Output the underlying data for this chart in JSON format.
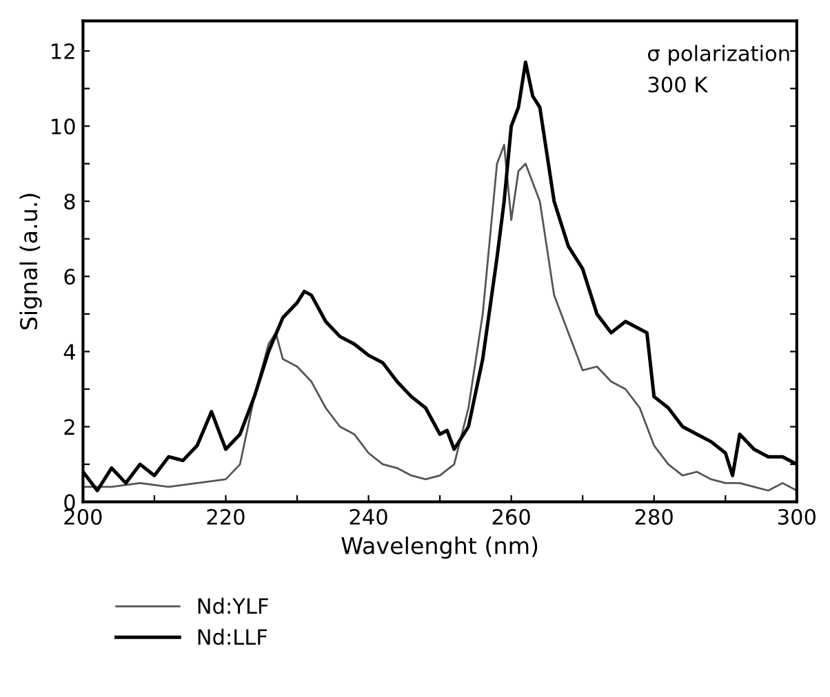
{
  "chart_data": {
    "type": "line",
    "xlabel": "Wavelenght (nm)",
    "ylabel": "Signal (a.u.)",
    "annotations": [
      "σ polarization",
      "300 K"
    ],
    "xlim": [
      200,
      300
    ],
    "ylim": [
      0,
      12.8
    ],
    "xticks": [
      200,
      {
        "value": 210,
        "label": null
      },
      220,
      {
        "value": 230,
        "label": null
      },
      240,
      {
        "value": 250,
        "label": null
      },
      260,
      {
        "value": 270,
        "label": null
      },
      280,
      {
        "value": 290,
        "label": null
      },
      300
    ],
    "yticks": [
      0,
      {
        "value": 1,
        "label": null
      },
      2,
      {
        "value": 3,
        "label": null
      },
      4,
      {
        "value": 5,
        "label": null
      },
      6,
      {
        "value": 7,
        "label": null
      },
      8,
      {
        "value": 9,
        "label": null
      },
      10,
      {
        "value": 11,
        "label": null
      },
      12
    ],
    "grid": false,
    "legend": "bottom left",
    "marker": "none",
    "line_style": "solid",
    "series": [
      {
        "name": "Nd:YLF",
        "color": "#555555",
        "x": [
          200,
          204,
          208,
          212,
          216,
          220,
          222,
          224,
          226,
          227,
          228,
          230,
          232,
          234,
          236,
          238,
          240,
          242,
          244,
          246,
          248,
          250,
          252,
          254,
          256,
          258,
          259,
          260,
          261,
          262,
          264,
          266,
          268,
          270,
          272,
          274,
          276,
          278,
          280,
          282,
          284,
          286,
          288,
          290,
          292,
          294,
          296,
          298,
          300
        ],
        "values": [
          0.4,
          0.4,
          0.5,
          0.4,
          0.5,
          0.6,
          1.0,
          2.8,
          4.2,
          4.5,
          3.8,
          3.6,
          3.2,
          2.5,
          2.0,
          1.8,
          1.3,
          1.0,
          0.9,
          0.7,
          0.6,
          0.7,
          1.0,
          2.5,
          5.0,
          9.0,
          9.5,
          7.5,
          8.8,
          9.0,
          8.0,
          5.5,
          4.5,
          3.5,
          3.6,
          3.2,
          3.0,
          2.5,
          1.5,
          1.0,
          0.7,
          0.8,
          0.6,
          0.5,
          0.5,
          0.4,
          0.3,
          0.5,
          0.3
        ]
      },
      {
        "name": "Nd:LLF",
        "color": "#000000",
        "x": [
          200,
          202,
          204,
          206,
          208,
          210,
          212,
          214,
          216,
          218,
          220,
          222,
          224,
          226,
          228,
          230,
          231,
          232,
          234,
          236,
          238,
          240,
          242,
          244,
          246,
          248,
          250,
          251,
          252,
          254,
          256,
          258,
          259,
          260,
          261,
          262,
          263,
          264,
          266,
          268,
          270,
          272,
          274,
          276,
          278,
          279,
          280,
          282,
          284,
          286,
          288,
          290,
          291,
          292,
          294,
          296,
          298,
          300
        ],
        "values": [
          0.8,
          0.3,
          0.9,
          0.5,
          1.0,
          0.7,
          1.2,
          1.1,
          1.5,
          2.4,
          1.4,
          1.8,
          2.8,
          4.0,
          4.9,
          5.3,
          5.6,
          5.5,
          4.8,
          4.4,
          4.2,
          3.9,
          3.7,
          3.2,
          2.8,
          2.5,
          1.8,
          1.9,
          1.4,
          2.0,
          3.8,
          6.5,
          8.0,
          10.0,
          10.5,
          11.7,
          10.8,
          10.5,
          8.0,
          6.8,
          6.2,
          5.0,
          4.5,
          4.8,
          4.6,
          4.5,
          2.8,
          2.5,
          2.0,
          1.8,
          1.6,
          1.3,
          0.7,
          1.8,
          1.4,
          1.2,
          1.2,
          1.0
        ]
      }
    ]
  }
}
